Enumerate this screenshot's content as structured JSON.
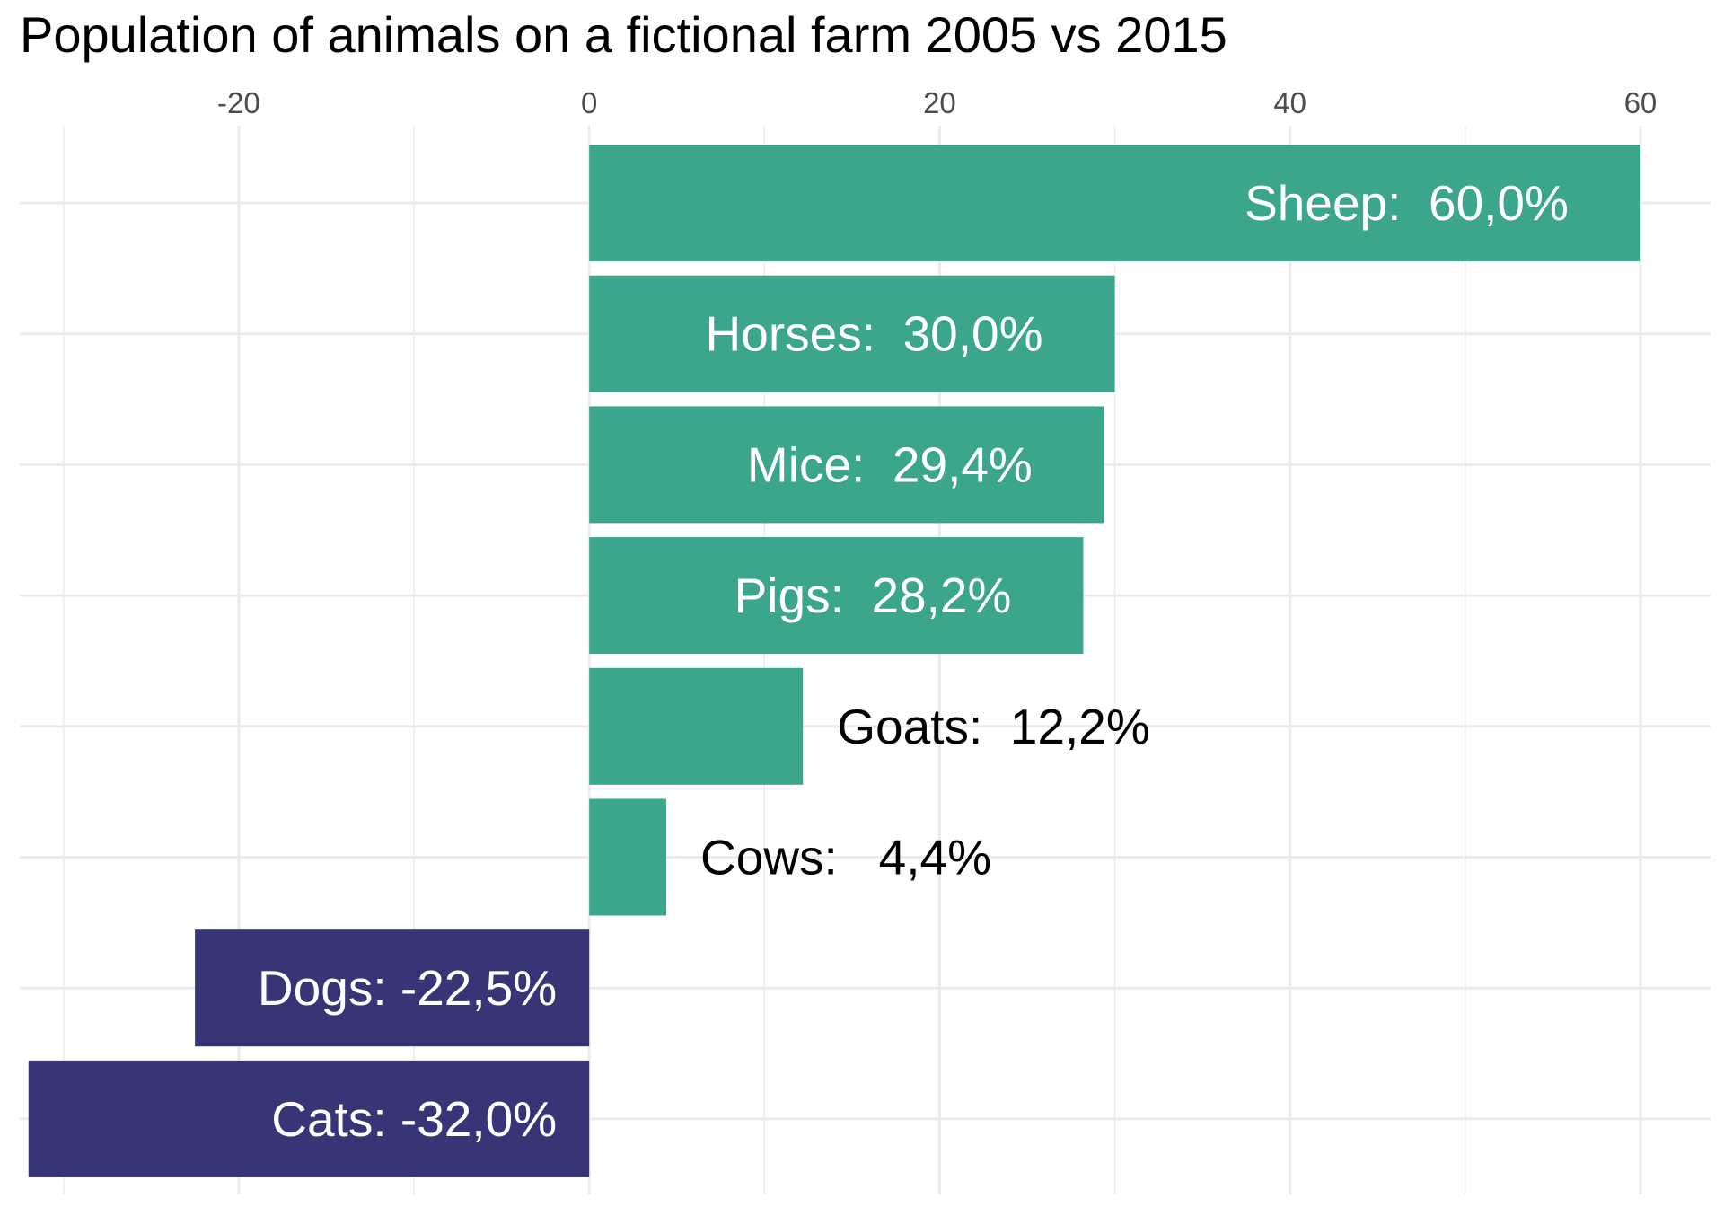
{
  "chart_data": {
    "type": "bar",
    "orientation": "horizontal",
    "title": "Population of animals on a fictional farm 2005 vs 2015",
    "xlabel": "",
    "ylabel": "",
    "xlim": [
      -32.5,
      64
    ],
    "x_ticks": [
      -20,
      0,
      20,
      40,
      60
    ],
    "x_tick_labels": [
      "-20",
      "0",
      "20",
      "40",
      "60"
    ],
    "x_axis_position": "top",
    "grid": true,
    "legend": "none",
    "colors": {
      "positive": "#3CA68C",
      "negative": "#373575",
      "label_on_bar": "#FFFFFF",
      "label_outside": "#000000",
      "grid": "#EBEBEB"
    },
    "categories": [
      "Sheep",
      "Horses",
      "Mice",
      "Pigs",
      "Goats",
      "Cows",
      "Dogs",
      "Cats"
    ],
    "values": [
      60.0,
      30.0,
      29.4,
      28.2,
      12.2,
      4.4,
      -22.5,
      -32.0
    ],
    "labels": [
      "Sheep:  60,0%",
      "Horses:  30,0%",
      "Mice:  29,4%",
      "Pigs:  28,2%",
      "Goats:  12,2%",
      "Cows:   4,4%",
      "Dogs: -22,5%",
      "Cats: -32,0%"
    ]
  }
}
